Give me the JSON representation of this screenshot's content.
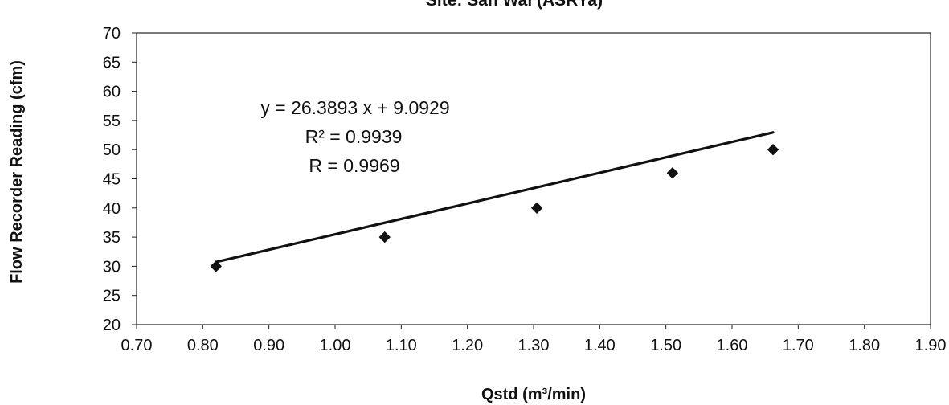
{
  "chart_data": {
    "type": "scatter",
    "title": "Site: San Wai (ASRYa)",
    "xlabel": "Qstd (m³/min)",
    "ylabel": "Flow Recorder Reading (cfm)",
    "xlim": [
      0.7,
      1.9
    ],
    "ylim": [
      20,
      70
    ],
    "x_ticks": [
      "0.70",
      "0.80",
      "0.90",
      "1.00",
      "1.10",
      "1.20",
      "1.30",
      "1.40",
      "1.50",
      "1.60",
      "1.70",
      "1.80",
      "1.90"
    ],
    "y_ticks": [
      "20",
      "25",
      "30",
      "35",
      "40",
      "45",
      "50",
      "55",
      "60",
      "65",
      "70"
    ],
    "grid": false,
    "legend": "none",
    "series": [
      {
        "points": [
          {
            "x": 0.82,
            "y": 30
          },
          {
            "x": 1.075,
            "y": 35
          },
          {
            "x": 1.305,
            "y": 40
          },
          {
            "x": 1.51,
            "y": 46
          },
          {
            "x": 1.662,
            "y": 50
          }
        ],
        "marker": "diamond",
        "color": "#111111"
      }
    ],
    "trendline": {
      "slope": 26.3893,
      "intercept": 9.0929,
      "x_range": [
        0.82,
        1.662
      ],
      "color": "#111111"
    },
    "annotations": [
      "y = 26.3893 x + 9.0929",
      "R² = 0.9939",
      "R = 0.9969"
    ]
  }
}
